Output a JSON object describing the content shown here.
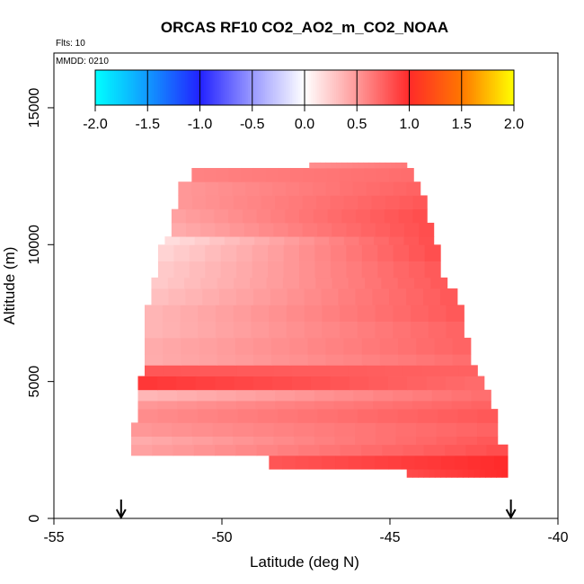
{
  "chart_data": {
    "type": "heatmap",
    "title": "ORCAS RF10 CO2_AO2_m_CO2_NOAA",
    "flights_label": "Flts: 10",
    "date_label": "MMDD: 0210",
    "xlabel": "Latitude (deg N)",
    "ylabel": "Altitude (m)",
    "xlim": [
      -55,
      -40
    ],
    "ylim": [
      0,
      17000
    ],
    "x_ticks": [
      -55,
      -50,
      -45,
      -40
    ],
    "y_ticks": [
      0,
      5000,
      10000,
      15000
    ],
    "colorbar": {
      "range": [
        -2.0,
        2.0
      ],
      "ticks": [
        "-2.0",
        "-1.5",
        "-1.0",
        "-0.5",
        "0.0",
        "0.5",
        "1.0",
        "1.5",
        "2.0"
      ],
      "stops": [
        {
          "value": -2.0,
          "color": "#00ffff"
        },
        {
          "value": -1.5,
          "color": "#1199ff"
        },
        {
          "value": -1.0,
          "color": "#2222ff"
        },
        {
          "value": -0.5,
          "color": "#9999ff"
        },
        {
          "value": 0.0,
          "color": "#ffffff"
        },
        {
          "value": 0.5,
          "color": "#ff9999"
        },
        {
          "value": 1.0,
          "color": "#ff2a2a"
        },
        {
          "value": 1.5,
          "color": "#ff7700"
        },
        {
          "value": 2.0,
          "color": "#ffff00"
        }
      ]
    },
    "profile_markers": [
      -53.0,
      -41.4
    ],
    "rows": [
      {
        "alt_top": 1800,
        "alt_bot": 1500,
        "lat_start": -44.5,
        "lat_end": -41.5,
        "left": 0.85,
        "right": 1.0
      },
      {
        "alt_top": 2300,
        "alt_bot": 1800,
        "lat_start": -48.6,
        "lat_end": -41.5,
        "left": 0.8,
        "right": 1.0
      },
      {
        "alt_top": 2700,
        "alt_bot": 2300,
        "lat_start": -52.7,
        "lat_end": -41.5,
        "left": 0.45,
        "right": 0.85
      },
      {
        "alt_top": 3000,
        "alt_bot": 2700,
        "lat_start": -52.7,
        "lat_end": -41.8,
        "left": 0.4,
        "right": 0.8
      },
      {
        "alt_top": 3500,
        "alt_bot": 3000,
        "lat_start": -52.7,
        "lat_end": -41.8,
        "left": 0.5,
        "right": 0.75
      },
      {
        "alt_top": 4000,
        "alt_bot": 3500,
        "lat_start": -52.5,
        "lat_end": -41.8,
        "left": 0.55,
        "right": 0.8
      },
      {
        "alt_top": 4300,
        "alt_bot": 4000,
        "lat_start": -52.5,
        "lat_end": -42.0,
        "left": 0.5,
        "right": 0.75
      },
      {
        "alt_top": 4700,
        "alt_bot": 4300,
        "lat_start": -52.5,
        "lat_end": -42.0,
        "left": 0.35,
        "right": 0.7
      },
      {
        "alt_top": 5200,
        "alt_bot": 4700,
        "lat_start": -52.5,
        "lat_end": -42.2,
        "left": 0.95,
        "right": 0.7
      },
      {
        "alt_top": 5600,
        "alt_bot": 5200,
        "lat_start": -52.3,
        "lat_end": -42.4,
        "left": 0.8,
        "right": 0.75
      },
      {
        "alt_top": 6000,
        "alt_bot": 5600,
        "lat_start": -52.3,
        "lat_end": -42.6,
        "left": 0.4,
        "right": 0.7
      },
      {
        "alt_top": 6600,
        "alt_bot": 6000,
        "lat_start": -52.3,
        "lat_end": -42.6,
        "left": 0.4,
        "right": 0.75
      },
      {
        "alt_top": 7200,
        "alt_bot": 6600,
        "lat_start": -52.3,
        "lat_end": -42.8,
        "left": 0.35,
        "right": 0.75
      },
      {
        "alt_top": 7800,
        "alt_bot": 7200,
        "lat_start": -52.3,
        "lat_end": -42.8,
        "left": 0.35,
        "right": 0.8
      },
      {
        "alt_top": 8400,
        "alt_bot": 7800,
        "lat_start": -52.1,
        "lat_end": -43.0,
        "left": 0.3,
        "right": 0.8
      },
      {
        "alt_top": 8800,
        "alt_bot": 8400,
        "lat_start": -52.1,
        "lat_end": -43.3,
        "left": 0.25,
        "right": 0.8
      },
      {
        "alt_top": 9400,
        "alt_bot": 8800,
        "lat_start": -51.9,
        "lat_end": -43.5,
        "left": 0.25,
        "right": 0.8
      },
      {
        "alt_top": 10000,
        "alt_bot": 9400,
        "lat_start": -51.9,
        "lat_end": -43.5,
        "left": 0.2,
        "right": 0.85
      },
      {
        "alt_top": 10300,
        "alt_bot": 10000,
        "lat_start": -51.7,
        "lat_end": -43.7,
        "left": 0.15,
        "right": 0.85
      },
      {
        "alt_top": 10800,
        "alt_bot": 10300,
        "lat_start": -51.5,
        "lat_end": -43.7,
        "left": 0.4,
        "right": 0.85
      },
      {
        "alt_top": 11300,
        "alt_bot": 10800,
        "lat_start": -51.5,
        "lat_end": -43.9,
        "left": 0.45,
        "right": 0.85
      },
      {
        "alt_top": 11800,
        "alt_bot": 11300,
        "lat_start": -51.3,
        "lat_end": -43.9,
        "left": 0.5,
        "right": 0.8
      },
      {
        "alt_top": 12300,
        "alt_bot": 11800,
        "lat_start": -51.3,
        "lat_end": -44.1,
        "left": 0.5,
        "right": 0.75
      },
      {
        "alt_top": 12800,
        "alt_bot": 12300,
        "lat_start": -50.9,
        "lat_end": -44.3,
        "left": 0.6,
        "right": 0.7
      },
      {
        "alt_top": 13000,
        "alt_bot": 12800,
        "lat_start": -47.4,
        "lat_end": -44.5,
        "left": 0.55,
        "right": 0.65
      }
    ]
  }
}
